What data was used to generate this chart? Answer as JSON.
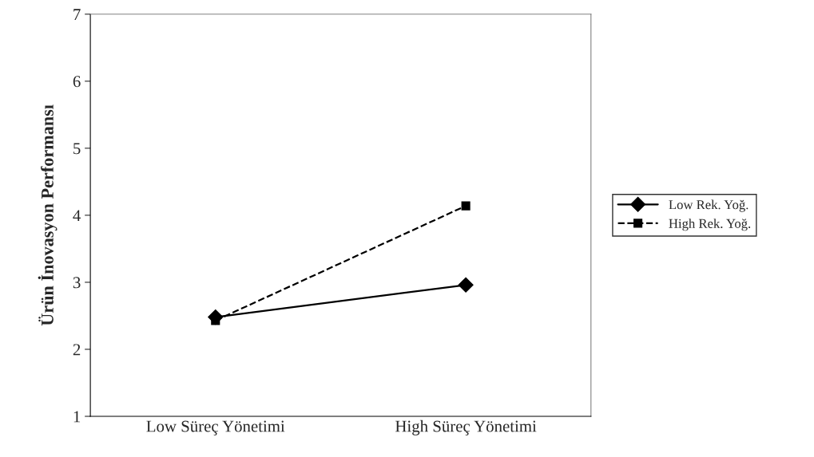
{
  "chart_data": {
    "type": "line",
    "ylabel": "Ürün İnovasyon Performansı",
    "categories": [
      "Low Süreç Yönetimi",
      "High Süreç Yönetimi"
    ],
    "series": [
      {
        "name": "Low Rek. Yoğ.",
        "color": "#000000",
        "values": [
          2.48,
          2.96
        ],
        "marker": "diamond",
        "line_style": "solid"
      },
      {
        "name": "High Rek. Yoğ.",
        "color": "#000000",
        "values": [
          2.43,
          4.14
        ],
        "marker": "square",
        "line_style": "dashed"
      }
    ],
    "ylim": [
      1,
      7
    ],
    "yticks": [
      1,
      2,
      3,
      4,
      5,
      6,
      7
    ],
    "grid": false,
    "legend": "right"
  }
}
